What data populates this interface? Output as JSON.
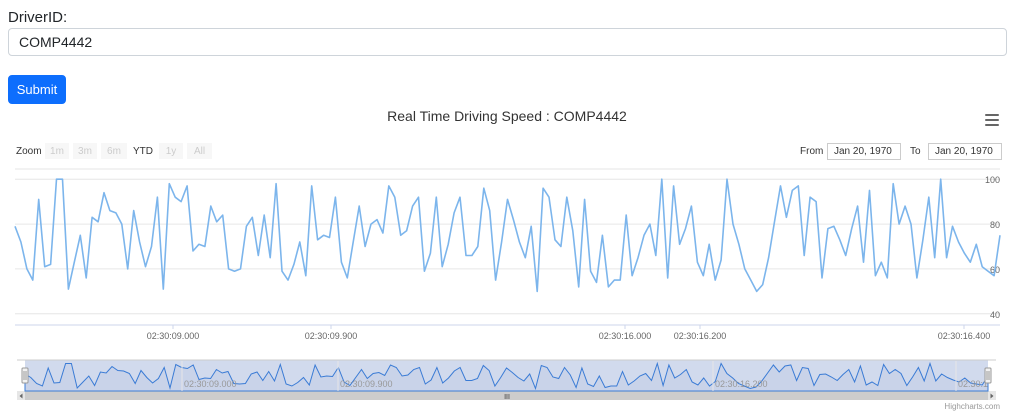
{
  "form": {
    "label": "DriverID:",
    "driver_id_value": "COMP4442",
    "submit_label": "Submit"
  },
  "chart_data": {
    "type": "line",
    "title": "Real Time Driving Speed : COMP4442",
    "xlabel": "",
    "ylabel": "",
    "ylim": [
      35,
      105
    ],
    "y_ticks": [
      40,
      60,
      80,
      100
    ],
    "x_tick_labels": [
      "02:30:09.000",
      "02:30:09.900",
      "02:30:16.000",
      "02:30:16.200",
      "02:30:16.400"
    ],
    "navigator_tick_labels": [
      "02:30:09.000",
      "02:30:09.900",
      "02:30:16.200",
      "02:30:1"
    ],
    "grid": true,
    "legend": "none",
    "series": [
      {
        "color": "#7cb5ec",
        "values": [
          79,
          72,
          60,
          55,
          91,
          61,
          62,
          100,
          100,
          51,
          63,
          75,
          56,
          83,
          81,
          94,
          86,
          85,
          80,
          60,
          86,
          72,
          61,
          70,
          92,
          51,
          98,
          92,
          90,
          97,
          68,
          71,
          70,
          88,
          81,
          84,
          60,
          59,
          60,
          79,
          83,
          66,
          84,
          65,
          98,
          59,
          55,
          62,
          72,
          57,
          97,
          73,
          75,
          74,
          92,
          63,
          56,
          72,
          88,
          70,
          80,
          82,
          76,
          97,
          92,
          75,
          77,
          88,
          92,
          59,
          67,
          92,
          61,
          71,
          85,
          92,
          66,
          66,
          70,
          96,
          86,
          55,
          72,
          91,
          82,
          72,
          65,
          79,
          50,
          96,
          92,
          73,
          70,
          92,
          77,
          52,
          91,
          59,
          54,
          75,
          52,
          55,
          55,
          84,
          57,
          65,
          75,
          80,
          66,
          100,
          56,
          97,
          71,
          78,
          88,
          63,
          57,
          71,
          55,
          64,
          100,
          80,
          71,
          60,
          55,
          50,
          53,
          65,
          81,
          97,
          83,
          95,
          97,
          66,
          92,
          90,
          56,
          78,
          79,
          73,
          66,
          78,
          88,
          63,
          95,
          57,
          63,
          56,
          98,
          80,
          88,
          80,
          56,
          73,
          92,
          65,
          100,
          65,
          79,
          72,
          67,
          63,
          71,
          61,
          59,
          57,
          75
        ]
      }
    ]
  },
  "range_selector": {
    "zoom_label": "Zoom",
    "buttons": [
      "1m",
      "3m",
      "6m",
      "YTD",
      "1y",
      "All"
    ],
    "active": "YTD",
    "from_label": "From",
    "from_value": "Jan 20, 1970",
    "to_label": "To",
    "to_value": "Jan 20, 1970"
  },
  "credits": "Highcharts.com",
  "scrollbar_grip": "III"
}
